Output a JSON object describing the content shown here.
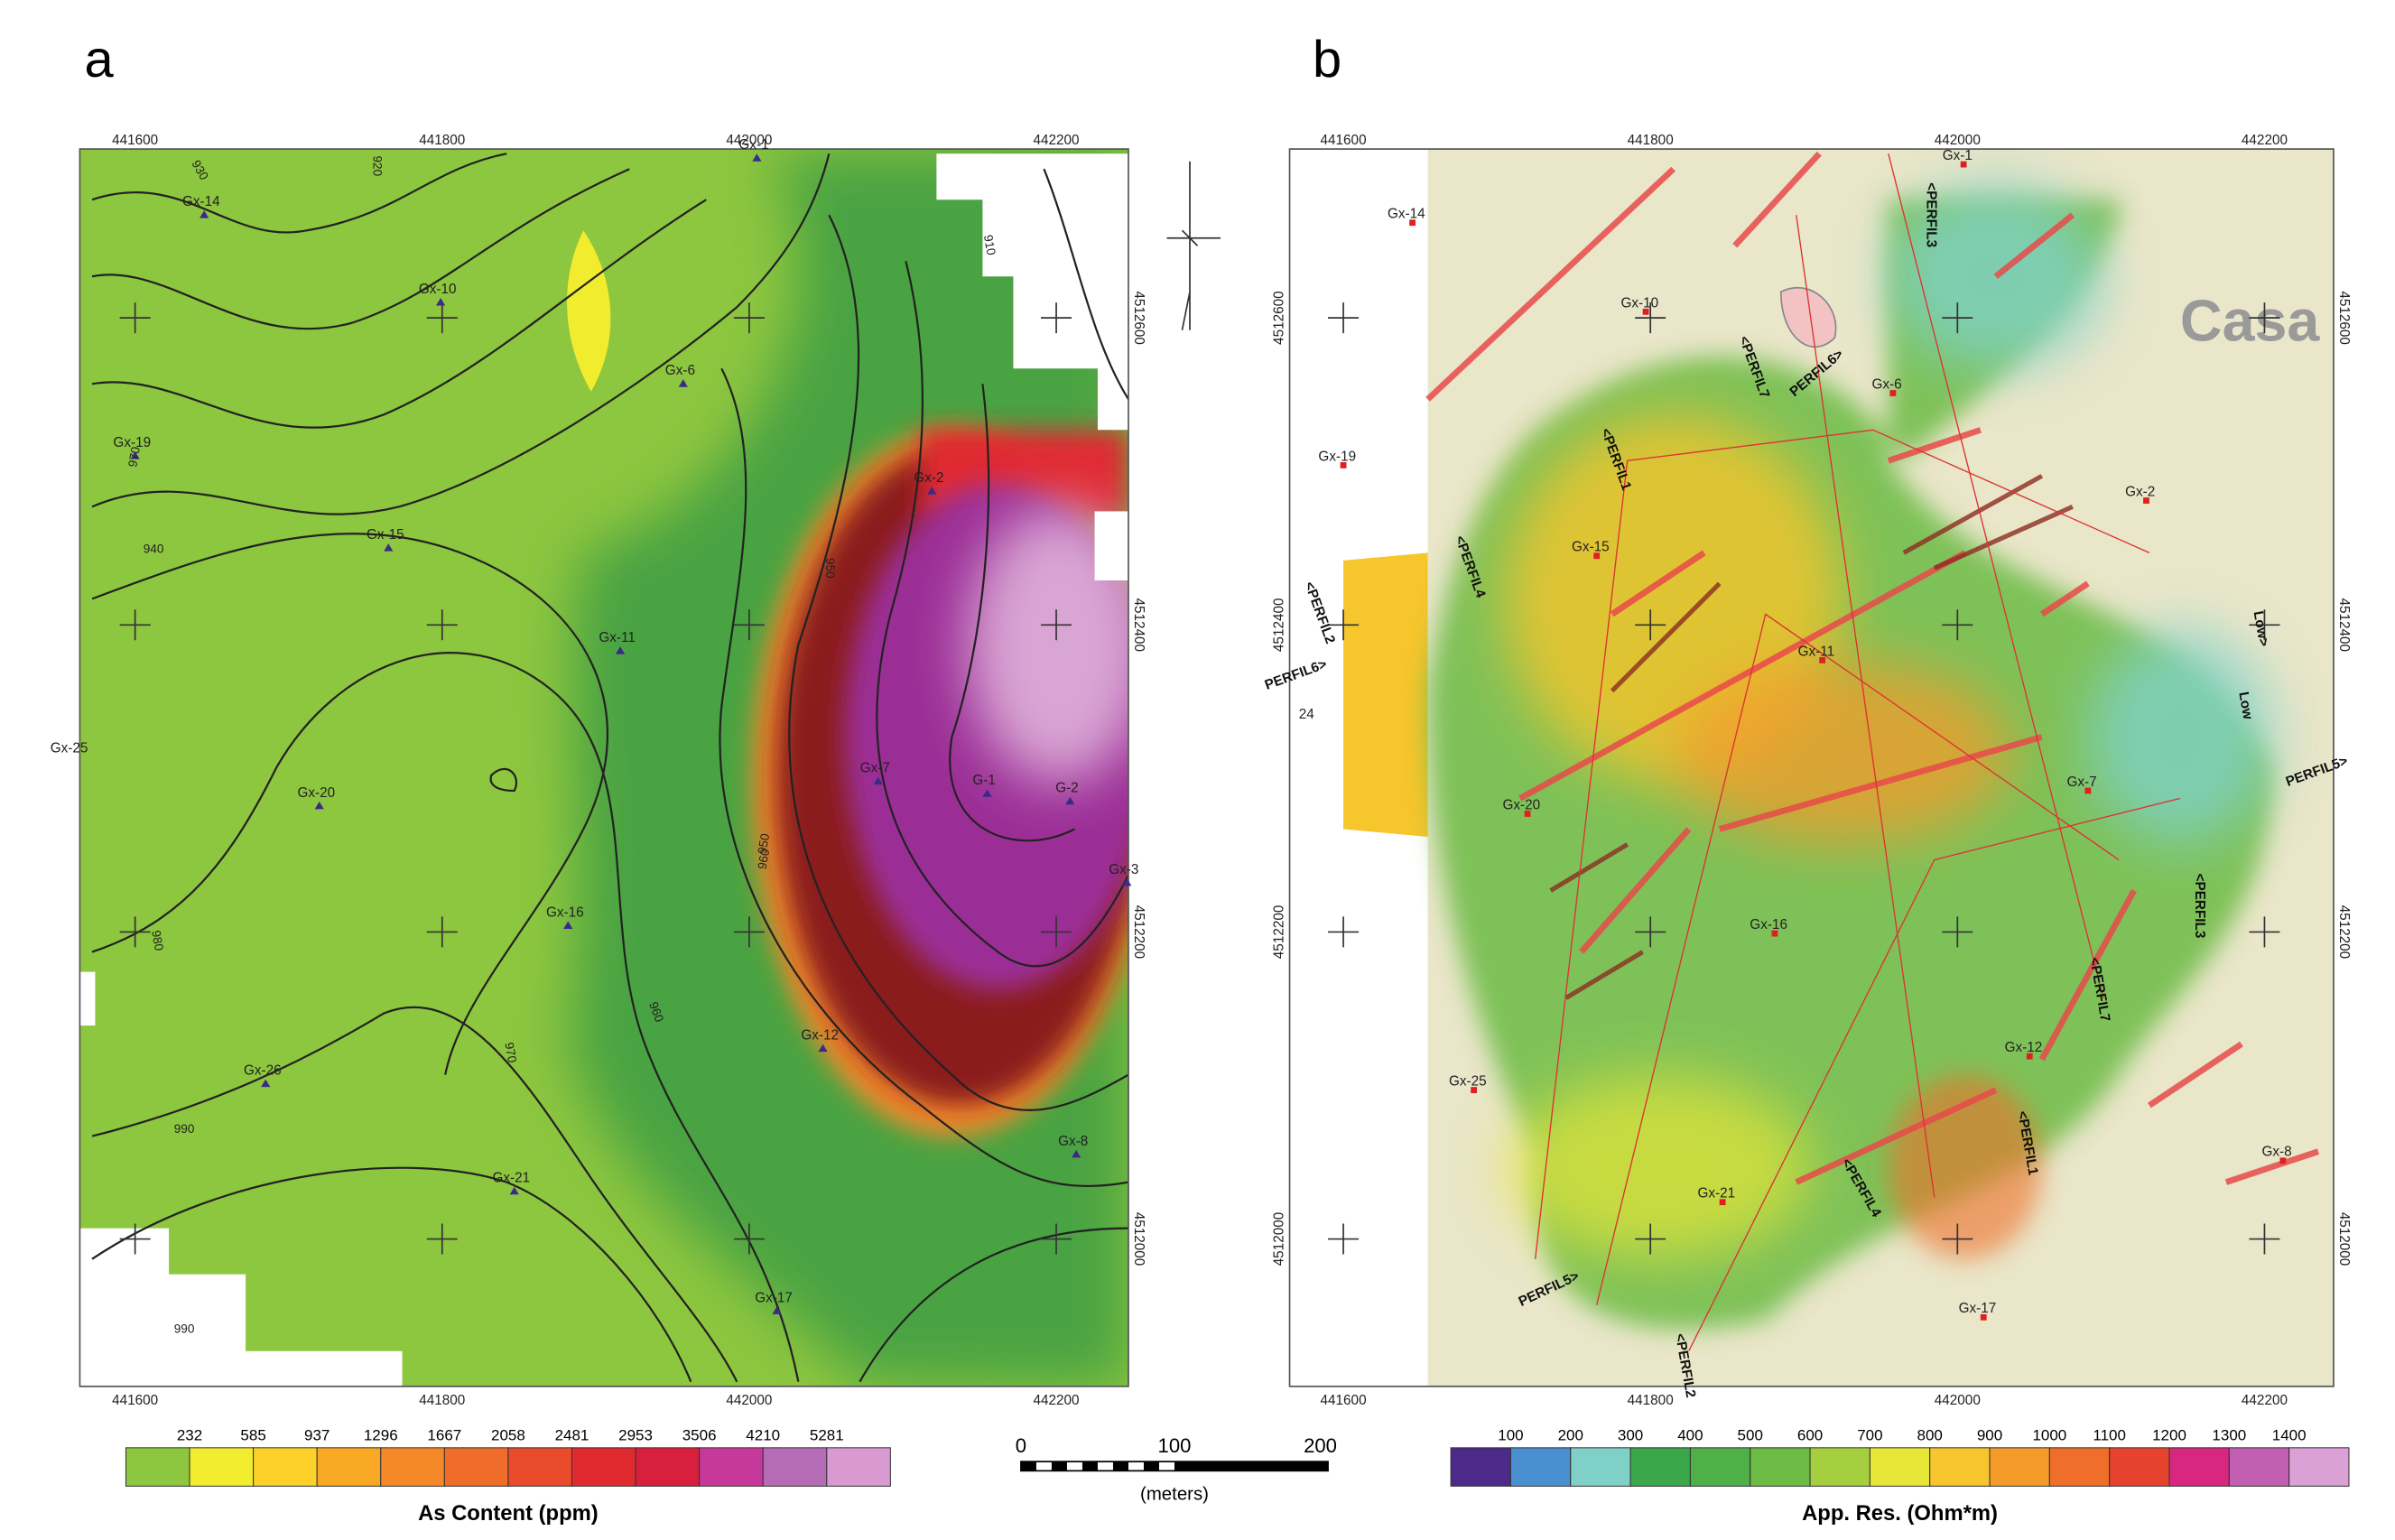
{
  "panel_a": {
    "label": "a",
    "x_ticks": [
      "441600",
      "441800",
      "442000",
      "442200"
    ],
    "y_ticks": [
      "4512600",
      "4512400",
      "4512200",
      "4512000"
    ],
    "samples": [
      "Gx-1",
      "Gx-14",
      "Gx-10",
      "Gx-6",
      "Gx-19",
      "Gx-15",
      "Gx-2",
      "Gx-11",
      "Gx-20",
      "Gx-7",
      "G-1",
      "G-2",
      "Gx-3",
      "Gx-16",
      "Gx-12",
      "Gx-26",
      "Gx-8",
      "Gx-21",
      "Gx-17"
    ],
    "outside_label": "Gx-25",
    "contour_labels": [
      "930",
      "920",
      "910",
      "950",
      "960",
      "940",
      "970",
      "980",
      "990",
      "950",
      "970",
      "960",
      "990"
    ],
    "legend": {
      "title": "As Content (ppm)",
      "labels": [
        232,
        585,
        937,
        1296,
        1667,
        2058,
        2481,
        2953,
        3506,
        4210,
        5281
      ],
      "colors": [
        "#8dc63f",
        "#f2ec2e",
        "#fcd12a",
        "#f9a825",
        "#f5892a",
        "#ef6c2a",
        "#e94b2b",
        "#e02a30",
        "#d91f3e",
        "#c6399a",
        "#b56bb5",
        "#d89ad0"
      ]
    }
  },
  "panel_b": {
    "label": "b",
    "x_ticks": [
      "441600",
      "441800",
      "442000",
      "442200"
    ],
    "y_ticks": [
      "4512600",
      "4512400",
      "4512200",
      "4512000"
    ],
    "samples": [
      "Gx-1",
      "Gx-14",
      "Gx-10",
      "Gx-6",
      "Gx-19",
      "Gx-15",
      "Gx-2",
      "Gx-11",
      "Gx-20",
      "Gx-7",
      "Gx-16",
      "Gx-12",
      "Gx-25",
      "Gx-8",
      "Gx-21",
      "Gx-17"
    ],
    "profiles": [
      "<PERFIL3",
      "<PERFIL7",
      "PERFIL6>",
      "<PERFIL1",
      "<PERFIL4",
      "<PERFIL2",
      "PERFIL6>",
      "Low>",
      "Low",
      "PERFIL5>",
      "<PERFIL3",
      "<PERFIL7",
      "<PERFIL1",
      "<PERFIL4",
      "PERFIL5>",
      "<PERFIL2"
    ],
    "other_labels": [
      "Casa",
      "24"
    ],
    "legend": {
      "title": "App. Res. (Ohm*m)",
      "labels": [
        100,
        200,
        300,
        400,
        500,
        600,
        700,
        800,
        900,
        1000,
        1100,
        1200,
        1300,
        1400
      ],
      "colors": [
        "#4b2a8a",
        "#4a8fd0",
        "#7fd1c8",
        "#3aa84a",
        "#4fb04a",
        "#6cbb45",
        "#a6cf3f",
        "#e6e637",
        "#f7c52c",
        "#f59b2a",
        "#ef6f2a",
        "#e5432d",
        "#d7277f",
        "#c35fb3",
        "#dba0d6"
      ]
    }
  },
  "scale_bar": {
    "labels": [
      "0",
      "100",
      "200"
    ],
    "unit": "(meters)"
  }
}
